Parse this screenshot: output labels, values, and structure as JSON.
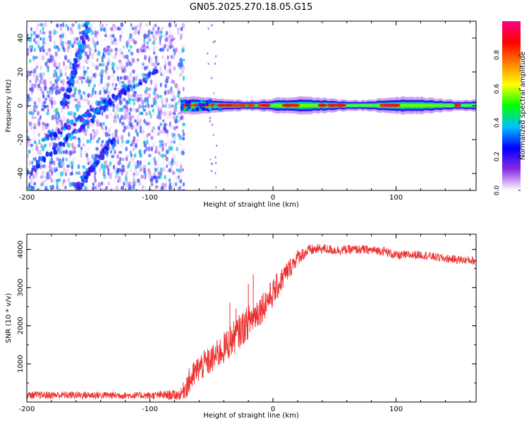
{
  "figure_title": "GN05.2025.270.18.05.G15",
  "chart_data": [
    {
      "type": "heatmap",
      "title": "GN05.2025.270.18.05.G15",
      "xlabel": "Height of straight line (km)",
      "ylabel": "Frequency (Hz)",
      "xlim": [
        -200,
        165
      ],
      "ylim": [
        -50,
        50
      ],
      "xticks": [
        -200,
        -100,
        0,
        100
      ],
      "yticks": [
        -40,
        -20,
        0,
        20,
        40
      ],
      "xtick_labels": [
        "-200",
        "-100",
        "0",
        "100"
      ],
      "ytick_labels": [
        "-40",
        "-20",
        "0",
        "20",
        "40"
      ],
      "colorbar": {
        "label": "Normalized spectral amplitude",
        "range": [
          0,
          1
        ],
        "ticks": [
          0.0,
          0.2,
          0.4,
          0.6,
          0.8
        ],
        "tick_labels": [
          "0.0",
          "0.2",
          "0.4",
          "0.6",
          "0.8"
        ],
        "colors": [
          "#ffffff",
          "#8a2be2",
          "#0000ff",
          "#00c0ff",
          "#00ff00",
          "#ffff00",
          "#ff8000",
          "#ff0000",
          "#ff0080"
        ]
      },
      "features": {
        "noise_region_x": [
          -200,
          -72
        ],
        "carrier_frequency_hz": 0,
        "carrier_start_x": -75,
        "diagonal_streaks": [
          {
            "from": [
              -170,
              0
            ],
            "to": [
              -150,
              48
            ]
          },
          {
            "from": [
              -200,
              -40
            ],
            "to": [
              -120,
              10
            ]
          },
          {
            "from": [
              -185,
              -20
            ],
            "to": [
              -95,
              20
            ]
          },
          {
            "from": [
              -160,
              -50
            ],
            "to": [
              -130,
              -20
            ]
          }
        ]
      }
    },
    {
      "type": "line",
      "xlabel": "Height of straight line (km)",
      "ylabel": "SNR (10 * v/v)",
      "xlim": [
        -200,
        165
      ],
      "ylim": [
        0,
        4400
      ],
      "xticks": [
        -200,
        -100,
        0,
        100
      ],
      "yticks": [
        1000,
        2000,
        3000,
        4000
      ],
      "xtick_labels": [
        "-200",
        "-100",
        "0",
        "100"
      ],
      "ytick_labels": [
        "1000",
        "2000",
        "3000",
        "4000"
      ],
      "series": [
        {
          "name": "SNR",
          "color": "#ee3030",
          "envelope": {
            "x": [
              -200,
              -150,
              -100,
              -75,
              -70,
              -60,
              -50,
              -40,
              -30,
              -20,
              -10,
              0,
              10,
              20,
              30,
              40,
              50,
              70,
              90,
              100,
              120,
              140,
              165
            ],
            "y": [
              180,
              180,
              170,
              190,
              450,
              900,
              1100,
              1400,
              1750,
              2100,
              2450,
              2850,
              3350,
              3800,
              3980,
              4020,
              3980,
              4000,
              3960,
              3840,
              3860,
              3760,
              3700
            ],
            "noise": [
              100,
              100,
              90,
              150,
              350,
              380,
              380,
              420,
              450,
              450,
              420,
              380,
              300,
              200,
              150,
              130,
              130,
              120,
              120,
              120,
              110,
              110,
              110
            ]
          },
          "peaks": [
            {
              "x": -35,
              "y": 2600
            },
            {
              "x": -30,
              "y": 2450
            },
            {
              "x": -16,
              "y": 3350
            },
            {
              "x": -20,
              "y": 3100
            }
          ]
        }
      ]
    }
  ]
}
